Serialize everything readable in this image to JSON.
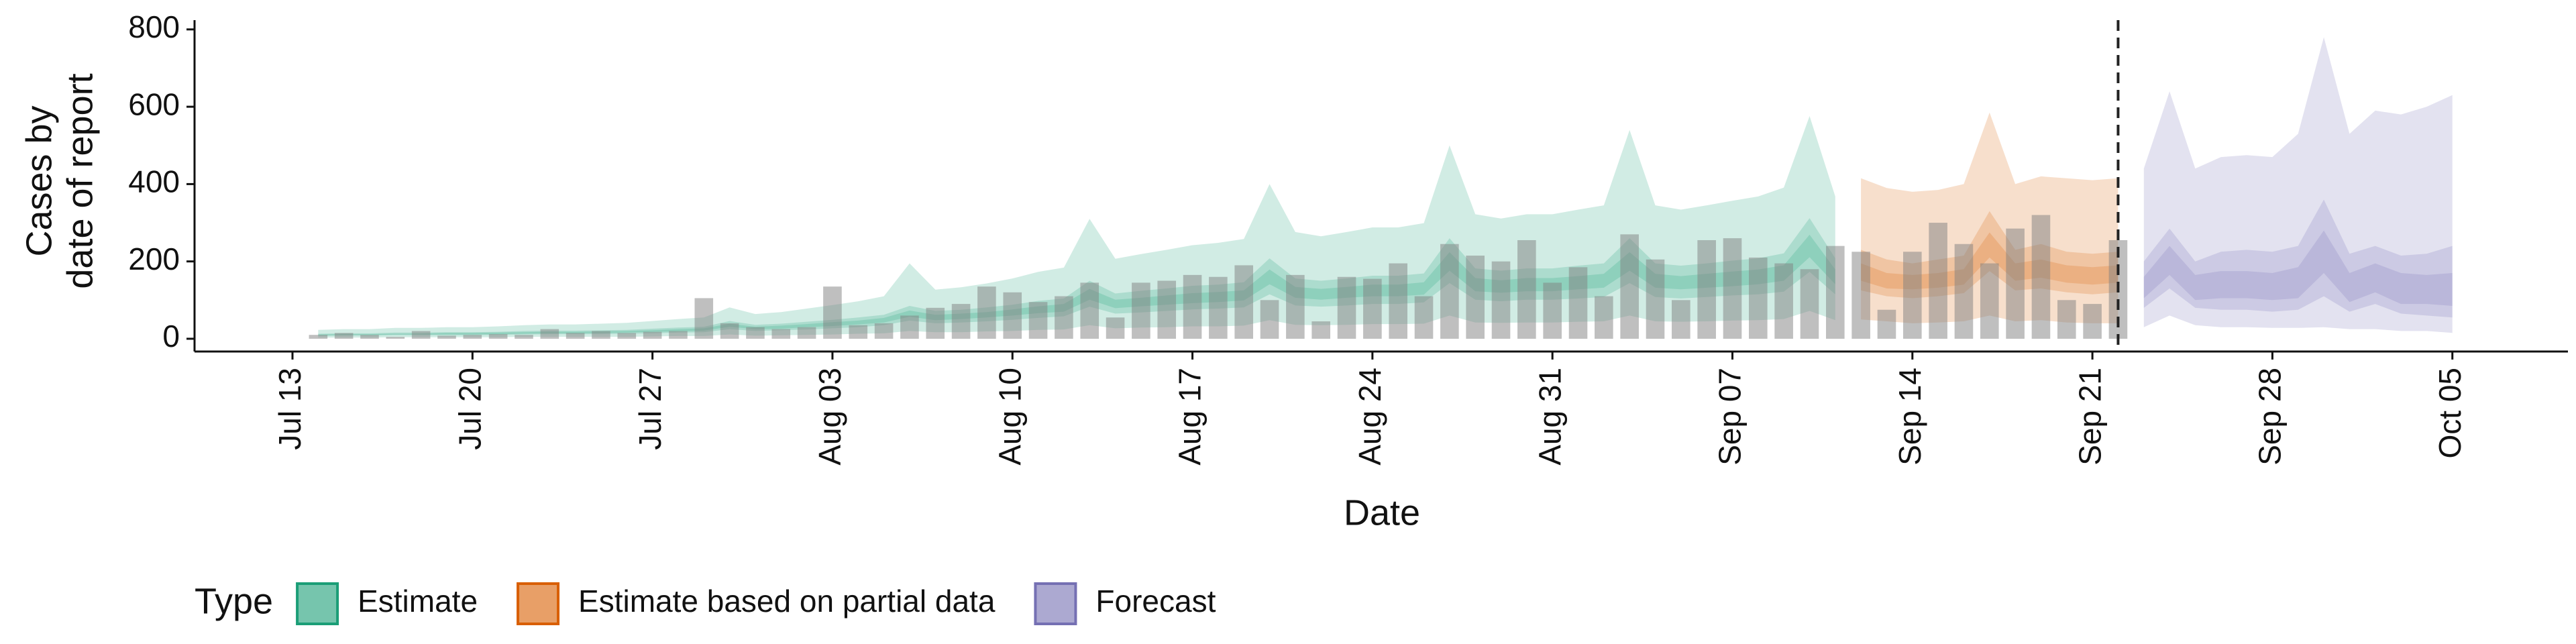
{
  "chart_data": {
    "type": "ribbon",
    "ylabel": [
      "Cases by",
      "date of report"
    ],
    "xlabel": "Date",
    "legend_title": "Type",
    "legend": "bottom-left",
    "ylim": [
      -33,
      824
    ],
    "yticks": [
      0,
      200,
      400,
      600,
      800
    ],
    "xticks": [
      "Jul 13",
      "Jul 20",
      "Jul 27",
      "Aug 03",
      "Aug 10",
      "Aug 17",
      "Aug 24",
      "Aug 31",
      "Sep 07",
      "Sep 14",
      "Sep 21",
      "Sep 28",
      "Oct 05"
    ],
    "vline": "Sep 22",
    "x": [
      "Jul 13",
      "Jul 14",
      "Jul 15",
      "Jul 16",
      "Jul 17",
      "Jul 18",
      "Jul 19",
      "Jul 20",
      "Jul 21",
      "Jul 22",
      "Jul 23",
      "Jul 24",
      "Jul 25",
      "Jul 26",
      "Jul 27",
      "Jul 28",
      "Jul 29",
      "Jul 30",
      "Jul 31",
      "Aug 01",
      "Aug 02",
      "Aug 03",
      "Aug 04",
      "Aug 05",
      "Aug 06",
      "Aug 07",
      "Aug 08",
      "Aug 09",
      "Aug 10",
      "Aug 11",
      "Aug 12",
      "Aug 13",
      "Aug 14",
      "Aug 15",
      "Aug 16",
      "Aug 17",
      "Aug 18",
      "Aug 19",
      "Aug 20",
      "Aug 21",
      "Aug 22",
      "Aug 23",
      "Aug 24",
      "Aug 25",
      "Aug 26",
      "Aug 27",
      "Aug 28",
      "Aug 29",
      "Aug 30",
      "Aug 31",
      "Sep 01",
      "Sep 02",
      "Sep 03",
      "Sep 04",
      "Sep 05",
      "Sep 06",
      "Sep 07",
      "Sep 08",
      "Sep 09",
      "Sep 10",
      "Sep 11",
      "Sep 12",
      "Sep 13",
      "Sep 14",
      "Sep 15",
      "Sep 16",
      "Sep 17",
      "Sep 18",
      "Sep 19",
      "Sep 20",
      "Sep 21",
      "Sep 22",
      "Sep 23",
      "Sep 24",
      "Sep 25",
      "Sep 26",
      "Sep 27",
      "Sep 28",
      "Sep 29",
      "Sep 30",
      "Oct 01",
      "Oct 02",
      "Oct 03",
      "Oct 04",
      "Oct 05"
    ],
    "bars": {
      "type": "bar",
      "color": "#7f7f7f",
      "values": [
        null,
        10,
        15,
        10,
        5,
        20,
        8,
        10,
        12,
        10,
        25,
        15,
        20,
        15,
        18,
        20,
        105,
        40,
        30,
        25,
        30,
        135,
        35,
        40,
        60,
        80,
        90,
        135,
        120,
        95,
        110,
        145,
        55,
        145,
        150,
        165,
        160,
        190,
        100,
        165,
        45,
        160,
        155,
        195,
        110,
        245,
        215,
        200,
        255,
        145,
        185,
        110,
        270,
        205,
        100,
        255,
        260,
        210,
        195,
        180,
        240,
        225,
        75,
        225,
        300,
        245,
        195,
        285,
        320,
        100,
        90,
        255,
        null,
        null,
        null,
        null,
        null,
        null,
        null,
        null,
        null,
        null,
        null,
        null,
        null
      ]
    },
    "series": [
      {
        "name": "Estimate",
        "color": "#1b9e77",
        "x": [
          "Jul 14",
          "Jul 15",
          "Jul 16",
          "Jul 17",
          "Jul 18",
          "Jul 19",
          "Jul 20",
          "Jul 21",
          "Jul 22",
          "Jul 23",
          "Jul 24",
          "Jul 25",
          "Jul 26",
          "Jul 27",
          "Jul 28",
          "Jul 29",
          "Jul 30",
          "Jul 31",
          "Aug 01",
          "Aug 02",
          "Aug 03",
          "Aug 04",
          "Aug 05",
          "Aug 06",
          "Aug 07",
          "Aug 08",
          "Aug 09",
          "Aug 10",
          "Aug 11",
          "Aug 12",
          "Aug 13",
          "Aug 14",
          "Aug 15",
          "Aug 16",
          "Aug 17",
          "Aug 18",
          "Aug 19",
          "Aug 20",
          "Aug 21",
          "Aug 22",
          "Aug 23",
          "Aug 24",
          "Aug 25",
          "Aug 26",
          "Aug 27",
          "Aug 28",
          "Aug 29",
          "Aug 30",
          "Aug 31",
          "Sep 01",
          "Sep 02",
          "Sep 03",
          "Sep 04",
          "Sep 05",
          "Sep 06",
          "Sep 07",
          "Sep 08",
          "Sep 09",
          "Sep 10",
          "Sep 11"
        ],
        "bands": [
          {
            "lower": [
              3,
              3,
              3,
              4,
              4,
              4,
              4,
              4,
              5,
              5,
              5,
              5,
              5,
              6,
              7,
              7,
              11,
              8,
              9,
              10,
              11,
              13,
              14,
              20,
              17,
              17,
              19,
              20,
              23,
              24,
              35,
              27,
              29,
              30,
              32,
              32,
              34,
              48,
              36,
              35,
              36,
              38,
              38,
              39,
              60,
              42,
              41,
              42,
              42,
              44,
              45,
              60,
              45,
              44,
              45,
              47,
              48,
              51,
              72,
              48
            ],
            "upper": [
              23,
              25,
              25,
              28,
              28,
              30,
              30,
              32,
              35,
              37,
              37,
              39,
              41,
              46,
              51,
              55,
              81,
              64,
              69,
              78,
              87,
              97,
              110,
              195,
              127,
              133,
              143,
              156,
              173,
              184,
              310,
              207,
              219,
              230,
              242,
              248,
              258,
              400,
              276,
              265,
              276,
              288,
              288,
              299,
              500,
              322,
              311,
              322,
              322,
              334,
              345,
              540,
              345,
              334,
              345,
              357,
              368,
              391,
              576,
              368
            ]
          },
          {
            "lower": [
              7,
              8,
              8,
              9,
              9,
              9,
              9,
              10,
              11,
              12,
              12,
              12,
              13,
              14,
              16,
              17,
              25,
              20,
              22,
              24,
              27,
              30,
              35,
              47,
              40,
              42,
              45,
              49,
              54,
              58,
              83,
              65,
              68,
              72,
              76,
              78,
              81,
              115,
              86,
              83,
              86,
              90,
              90,
              94,
              144,
              101,
              97,
              101,
              101,
              104,
              108,
              144,
              108,
              104,
              108,
              112,
              115,
              122,
              173,
              115
            ],
            "upper": [
              13,
              14,
              14,
              16,
              16,
              17,
              17,
              18,
              20,
              21,
              21,
              22,
              23,
              26,
              29,
              31,
              46,
              36,
              39,
              44,
              49,
              55,
              62,
              85,
              72,
              75,
              81,
              88,
              98,
              104,
              150,
              117,
              124,
              130,
              137,
              140,
              146,
              208,
              156,
              150,
              156,
              163,
              163,
              169,
              260,
              182,
              176,
              182,
              182,
              189,
              195,
              260,
              195,
              189,
              195,
              202,
              208,
              221,
              312,
              208
            ]
          },
          {
            "lower": [
              9,
              10,
              10,
              11,
              11,
              11,
              11,
              12,
              13,
              14,
              14,
              15,
              16,
              18,
              19,
              21,
              31,
              25,
              26,
              30,
              33,
              37,
              42,
              57,
              48,
              51,
              55,
              60,
              66,
              70,
              101,
              79,
              84,
              88,
              92,
              95,
              99,
              141,
              106,
              101,
              106,
              110,
              110,
              114,
              176,
              123,
              119,
              123,
              123,
              128,
              132,
              176,
              132,
              128,
              132,
              136,
              141,
              150,
              211,
              141
            ],
            "upper": [
              11,
              12,
              12,
              13,
              13,
              15,
              15,
              16,
              17,
              18,
              18,
              19,
              20,
              22,
              25,
              27,
              39,
              31,
              34,
              38,
              43,
              47,
              54,
              73,
              62,
              65,
              69,
              76,
              84,
              90,
              129,
              101,
              106,
              112,
              118,
              121,
              125,
              179,
              134,
              129,
              134,
              140,
              140,
              146,
              224,
              157,
              151,
              157,
              157,
              162,
              168,
              224,
              168,
              162,
              168,
              174,
              179,
              190,
              269,
              179
            ]
          }
        ]
      },
      {
        "name": "Estimate based on partial data",
        "color": "#d95f02",
        "x": [
          "Sep 12",
          "Sep 13",
          "Sep 14",
          "Sep 15",
          "Sep 16",
          "Sep 17",
          "Sep 18",
          "Sep 19",
          "Sep 20",
          "Sep 21",
          "Sep 22"
        ],
        "bands": [
          {
            "lower": [
              50,
              45,
              40,
              42,
              45,
              60,
              45,
              48,
              42,
              40,
              40
            ],
            "upper": [
              415,
              390,
              380,
              385,
              400,
              585,
              400,
              420,
              415,
              410,
              415
            ]
          },
          {
            "lower": [
              125,
              110,
              105,
              110,
              118,
              175,
              125,
              130,
              120,
              115,
              120
            ],
            "upper": [
              230,
              205,
              195,
              205,
              215,
              330,
              230,
              245,
              225,
              220,
              225
            ]
          },
          {
            "lower": [
              150,
              130,
              128,
              132,
              140,
              210,
              150,
              158,
              145,
              140,
              145
            ],
            "upper": [
              195,
              170,
              165,
              170,
              180,
              275,
              195,
              205,
              190,
              185,
              190
            ]
          }
        ]
      },
      {
        "name": "Forecast",
        "color": "#7570b3",
        "x": [
          "Sep 23",
          "Sep 24",
          "Sep 25",
          "Sep 26",
          "Sep 27",
          "Sep 28",
          "Sep 29",
          "Sep 30",
          "Oct 01",
          "Oct 02",
          "Oct 03",
          "Oct 04",
          "Oct 05"
        ],
        "bands": [
          {
            "lower": [
              30,
              60,
              35,
              30,
              30,
              28,
              28,
              30,
              25,
              25,
              20,
              20,
              15
            ],
            "upper": [
              440,
              640,
              440,
              470,
              475,
              470,
              530,
              780,
              530,
              590,
              580,
              600,
              630
            ]
          },
          {
            "lower": [
              80,
              130,
              80,
              75,
              75,
              70,
              75,
              110,
              70,
              90,
              65,
              60,
              55
            ],
            "upper": [
              200,
              285,
              200,
              225,
              230,
              225,
              240,
              360,
              220,
              240,
              215,
              220,
              240
            ]
          },
          {
            "lower": [
              105,
              165,
              100,
              105,
              105,
              100,
              105,
              170,
              95,
              120,
              90,
              90,
              85
            ],
            "upper": [
              160,
              240,
              165,
              175,
              175,
              170,
              185,
              280,
              170,
              195,
              170,
              165,
              170
            ]
          }
        ]
      }
    ]
  }
}
